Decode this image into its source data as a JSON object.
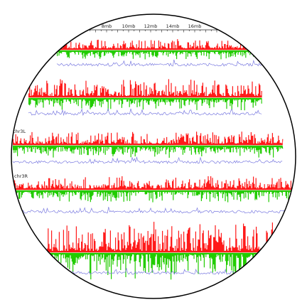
{
  "chart_data": {
    "type": "area",
    "title": "",
    "xlabel": "",
    "ylabel": "",
    "xaxis": {
      "unit": "mb",
      "ticks": [
        {
          "value": 8,
          "label": "8mb"
        },
        {
          "value": 10,
          "label": "10mb"
        },
        {
          "value": 12,
          "label": "12mb"
        },
        {
          "value": 14,
          "label": "14mb"
        },
        {
          "value": 16,
          "label": "16mb"
        }
      ]
    },
    "grid": false,
    "legend": "none",
    "colors": {
      "positive": "#ff1a1a",
      "negative": "#22cc00",
      "line": "#7a7ae0",
      "axis": "#222222",
      "frame": "#000000"
    },
    "tracks": [
      {
        "label": "",
        "xrange": [
          0,
          23.0
        ],
        "peak_level": 0.35
      },
      {
        "label": "",
        "xrange": [
          0,
          21.2
        ],
        "peak_level": 0.55
      },
      {
        "label": "chr3L",
        "xrange": [
          0,
          24.5
        ],
        "peak_level": 0.4
      },
      {
        "label": "chr3R",
        "xrange": [
          0,
          27.9
        ],
        "peak_level": 0.4
      },
      {
        "label": "",
        "xrange": [
          0,
          22.4
        ],
        "peak_level": 0.9
      }
    ]
  }
}
